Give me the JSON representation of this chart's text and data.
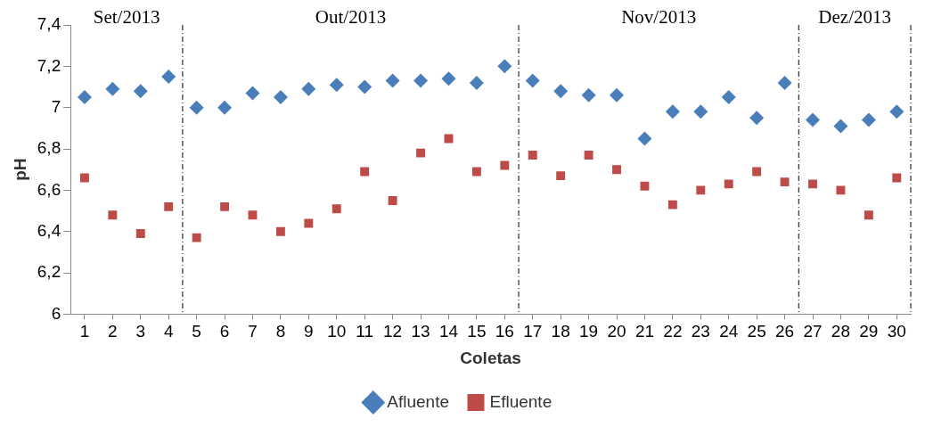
{
  "chart_data": {
    "type": "scatter",
    "xlabel": "Coletas",
    "ylabel": "pH",
    "x": [
      1,
      2,
      3,
      4,
      5,
      6,
      7,
      8,
      9,
      10,
      11,
      12,
      13,
      14,
      15,
      16,
      17,
      18,
      19,
      20,
      21,
      22,
      23,
      24,
      25,
      26,
      27,
      28,
      29,
      30
    ],
    "xlim": [
      0.5,
      30.5
    ],
    "xticks": [
      1,
      2,
      3,
      4,
      5,
      6,
      7,
      8,
      9,
      10,
      11,
      12,
      13,
      14,
      15,
      16,
      17,
      18,
      19,
      20,
      21,
      22,
      23,
      24,
      25,
      26,
      27,
      28,
      29,
      30
    ],
    "ylim": [
      6,
      7.4
    ],
    "yticks": [
      {
        "value": 6,
        "label": "6"
      },
      {
        "value": 6.2,
        "label": "6,2"
      },
      {
        "value": 6.4,
        "label": "6,4"
      },
      {
        "value": 6.6,
        "label": "6,6"
      },
      {
        "value": 6.8,
        "label": "6,8"
      },
      {
        "value": 7,
        "label": "7"
      },
      {
        "value": 7.2,
        "label": "7,2"
      },
      {
        "value": 7.4,
        "label": "7,4"
      }
    ],
    "grid": false,
    "legend": "bottom",
    "series": [
      {
        "name": "Afluente",
        "color": "#4a7ebb",
        "marker": "diamond",
        "values": [
          7.05,
          7.09,
          7.08,
          7.15,
          7.0,
          7.0,
          7.07,
          7.05,
          7.09,
          7.11,
          7.1,
          7.13,
          7.13,
          7.14,
          7.12,
          7.2,
          7.13,
          7.08,
          7.06,
          7.06,
          6.85,
          6.98,
          6.98,
          7.05,
          6.95,
          7.12,
          6.94,
          6.91,
          6.94,
          6.98
        ]
      },
      {
        "name": "Efluente",
        "color": "#be4b48",
        "marker": "square",
        "values": [
          6.66,
          6.48,
          6.39,
          6.52,
          6.37,
          6.52,
          6.48,
          6.4,
          6.44,
          6.51,
          6.69,
          6.55,
          6.78,
          6.85,
          6.69,
          6.72,
          6.77,
          6.67,
          6.77,
          6.7,
          6.62,
          6.53,
          6.6,
          6.63,
          6.69,
          6.64,
          6.63,
          6.6,
          6.48,
          6.66
        ]
      }
    ],
    "ref_lines": [
      {
        "axis": "x",
        "value": 4.5,
        "color": "#000000",
        "line_style": "dashed"
      },
      {
        "axis": "x",
        "value": 16.5,
        "color": "#000000",
        "line_style": "dashed"
      },
      {
        "axis": "x",
        "value": 26.5,
        "color": "#000000",
        "line_style": "dashed"
      },
      {
        "axis": "x",
        "value": 30.5,
        "color": "#000000",
        "line_style": "dashed"
      }
    ],
    "annotations": [
      "Set/2013",
      "Out/2013",
      "Nov/2013",
      "Dez/2013"
    ]
  }
}
